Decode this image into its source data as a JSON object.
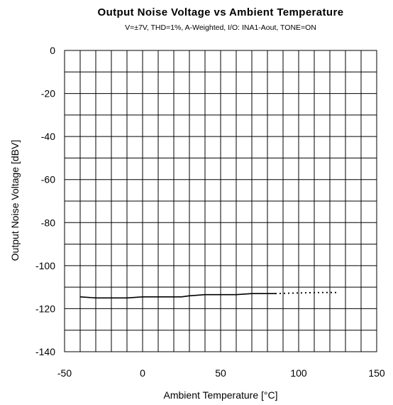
{
  "chart_data": {
    "type": "line",
    "title": "Output Noise Voltage vs Ambient Temperature",
    "subtitle": "V=±7V, THD=1%, A-Weighted,  I/O: INA1-Aout, TONE=ON",
    "xlabel": "Ambient Temperature [°C]",
    "ylabel": "Output Noise Voltage [dBV]",
    "xlim": [
      -50,
      150
    ],
    "ylim": [
      -140,
      0
    ],
    "x_ticks": [
      "-50",
      "0",
      "50",
      "100",
      "150"
    ],
    "y_ticks": [
      "0",
      "-20",
      "-40",
      "-60",
      "-80",
      "-100",
      "-120",
      "-140"
    ],
    "x_minor_step": 10,
    "y_minor_step": 10,
    "grid": true,
    "series": [
      {
        "style": "solid",
        "color": "#000000",
        "x": [
          -40,
          -30,
          -20,
          -10,
          0,
          10,
          20,
          25,
          30,
          40,
          50,
          60,
          70,
          80,
          85
        ],
        "y": [
          -114.5,
          -115.0,
          -115.0,
          -115.0,
          -114.5,
          -114.5,
          -114.5,
          -114.5,
          -114.0,
          -113.5,
          -113.5,
          -113.5,
          -113.0,
          -113.0,
          -113.0
        ]
      },
      {
        "style": "dotted",
        "color": "#000000",
        "x": [
          85,
          95,
          105,
          115,
          125
        ],
        "y": [
          -113.0,
          -112.8,
          -112.6,
          -112.5,
          -112.5
        ]
      }
    ]
  }
}
